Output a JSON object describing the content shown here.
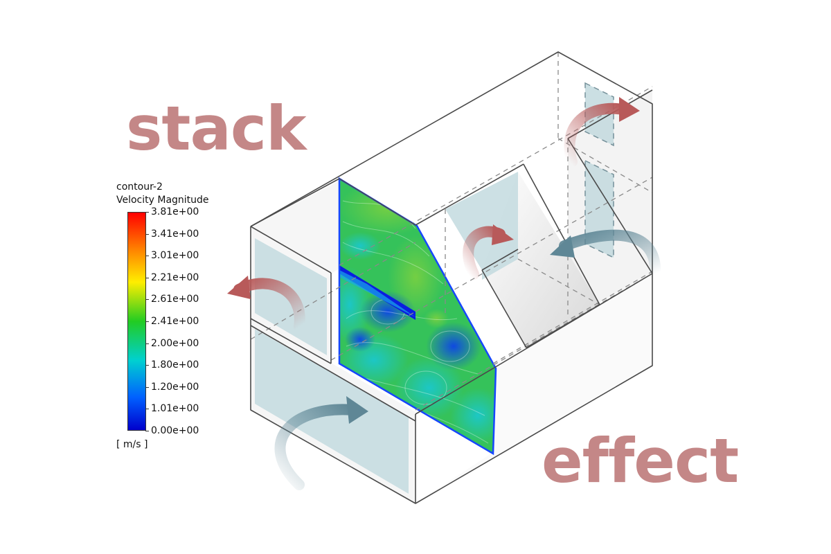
{
  "words": {
    "stack": "stack",
    "effect": "effect"
  },
  "legend": {
    "title": "contour-2",
    "quantity": "Velocity Magnitude",
    "unit": "[ m/s ]",
    "ticks": [
      "3.81e+00",
      "3.41e+00",
      "3.01e+00",
      "2.21e+00",
      "2.61e+00",
      "2.41e+00",
      "2.00e+00",
      "1.80e+00",
      "1.20e+00",
      "1.01e+00",
      "0.00e+00"
    ]
  },
  "colors": {
    "word": "#c48787",
    "warm_arrow": "#b85a5a",
    "cool_arrow": "#5f8796",
    "panel": "#c3dadf",
    "edge": "#555555",
    "contour_low": "#0a1ee0",
    "contour_mid": "#22c26a",
    "contour_high": "#ff1a00"
  }
}
